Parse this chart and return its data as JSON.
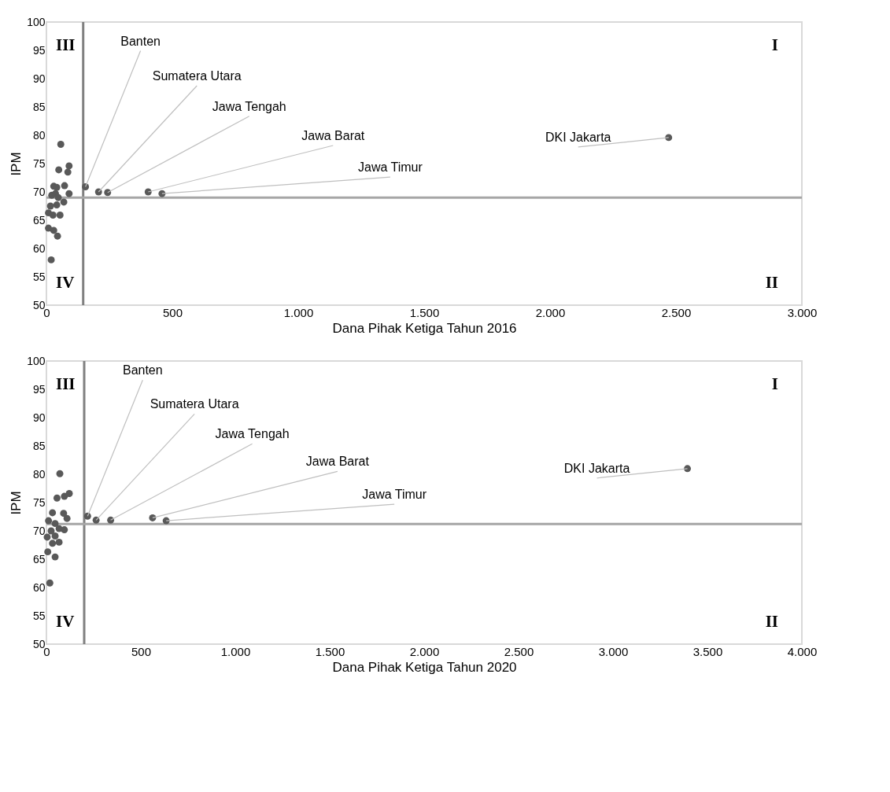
{
  "chart_data": [
    {
      "type": "scatter",
      "xlabel": "Dana Pihak Ketiga Tahun 2016",
      "ylabel": "IPM",
      "marker": "circle",
      "grid": false,
      "x": [
        155,
        207,
        243,
        404,
        459,
        2471,
        57,
        90,
        49,
        85,
        29,
        41,
        72,
        90,
        21,
        36,
        47,
        69,
        16,
        41,
        8,
        26,
        54,
        8,
        29,
        44,
        19
      ],
      "series": [
        {
          "color": "#595959",
          "values": [
            70.9,
            70.0,
            69.9,
            70.0,
            69.7,
            79.6,
            78.4,
            74.6,
            73.9,
            73.5,
            71.0,
            70.8,
            71.1,
            69.7,
            69.4,
            69.7,
            69.0,
            68.2,
            67.5,
            67.7,
            66.3,
            65.9,
            65.9,
            63.6,
            63.2,
            62.2,
            58.0
          ],
          "value_labels": [
            "Banten",
            "Sumatera Utara",
            "Jawa Tengah",
            "Jawa Barat",
            "Jawa Timur",
            "DKI Jakarta",
            null,
            null,
            null,
            null,
            null,
            null,
            null,
            null,
            null,
            null,
            null,
            null,
            null,
            null,
            null,
            null,
            null,
            null,
            null,
            null,
            null
          ]
        }
      ],
      "xlim": [
        0,
        3000
      ],
      "xticks": [
        0,
        500,
        {
          "value": 1000,
          "label": "1.000"
        },
        {
          "value": 1500,
          "label": "1.500"
        },
        {
          "value": 2000,
          "label": "2.000"
        },
        {
          "value": 2500,
          "label": "2.500"
        },
        {
          "value": 3000,
          "label": "3.000"
        }
      ],
      "ylim": [
        50,
        100
      ],
      "yticks": [
        50,
        55,
        60,
        65,
        70,
        75,
        80,
        85,
        90,
        95,
        100
      ],
      "ref_lines": [
        {
          "axis": "x",
          "value": 146,
          "color": "#808080"
        },
        {
          "axis": "y",
          "value": 69.0,
          "color": "#a6a6a6"
        }
      ],
      "annotations": [
        "I",
        "II",
        "III",
        "IV"
      ]
    },
    {
      "type": "scatter",
      "xlabel": "Dana Pihak Ketiga Tahun 2020",
      "ylabel": "IPM",
      "marker": "circle",
      "grid": false,
      "x": [
        218,
        263,
        340,
        562,
        634,
        3394,
        71,
        56,
        95,
        121,
        32,
        91,
        109,
        11,
        46,
        95,
        25,
        67,
        4,
        46,
        67,
        32,
        7,
        46,
        18
      ],
      "series": [
        {
          "color": "#595959",
          "values": [
            72.6,
            71.9,
            71.9,
            72.3,
            71.8,
            81.0,
            80.1,
            75.8,
            76.1,
            76.6,
            73.2,
            73.1,
            72.2,
            71.8,
            71.3,
            70.2,
            70.0,
            70.4,
            68.9,
            69.1,
            68.0,
            67.8,
            66.3,
            65.4,
            60.8
          ],
          "value_labels": [
            "Banten",
            "Sumatera Utara",
            "Jawa Tengah",
            "Jawa Barat",
            "Jawa Timur",
            "DKI Jakarta",
            null,
            null,
            null,
            null,
            null,
            null,
            null,
            null,
            null,
            null,
            null,
            null,
            null,
            null,
            null,
            null,
            null,
            null,
            null
          ]
        }
      ],
      "xlim": [
        0,
        4000
      ],
      "xticks": [
        0,
        500,
        {
          "value": 1000,
          "label": "1.000"
        },
        {
          "value": 1500,
          "label": "1.500"
        },
        {
          "value": 2000,
          "label": "2.000"
        },
        {
          "value": 2500,
          "label": "2.500"
        },
        {
          "value": 3000,
          "label": "3.000"
        },
        {
          "value": 3500,
          "label": "3.500"
        },
        {
          "value": 4000,
          "label": "4.000"
        }
      ],
      "ylim": [
        50,
        100
      ],
      "yticks": [
        50,
        55,
        60,
        65,
        70,
        75,
        80,
        85,
        90,
        95,
        100
      ],
      "ref_lines": [
        {
          "axis": "x",
          "value": 200,
          "color": "#808080"
        },
        {
          "axis": "y",
          "value": 71.2,
          "color": "#a6a6a6"
        }
      ],
      "annotations": [
        "I",
        "II",
        "III",
        "IV"
      ]
    }
  ]
}
